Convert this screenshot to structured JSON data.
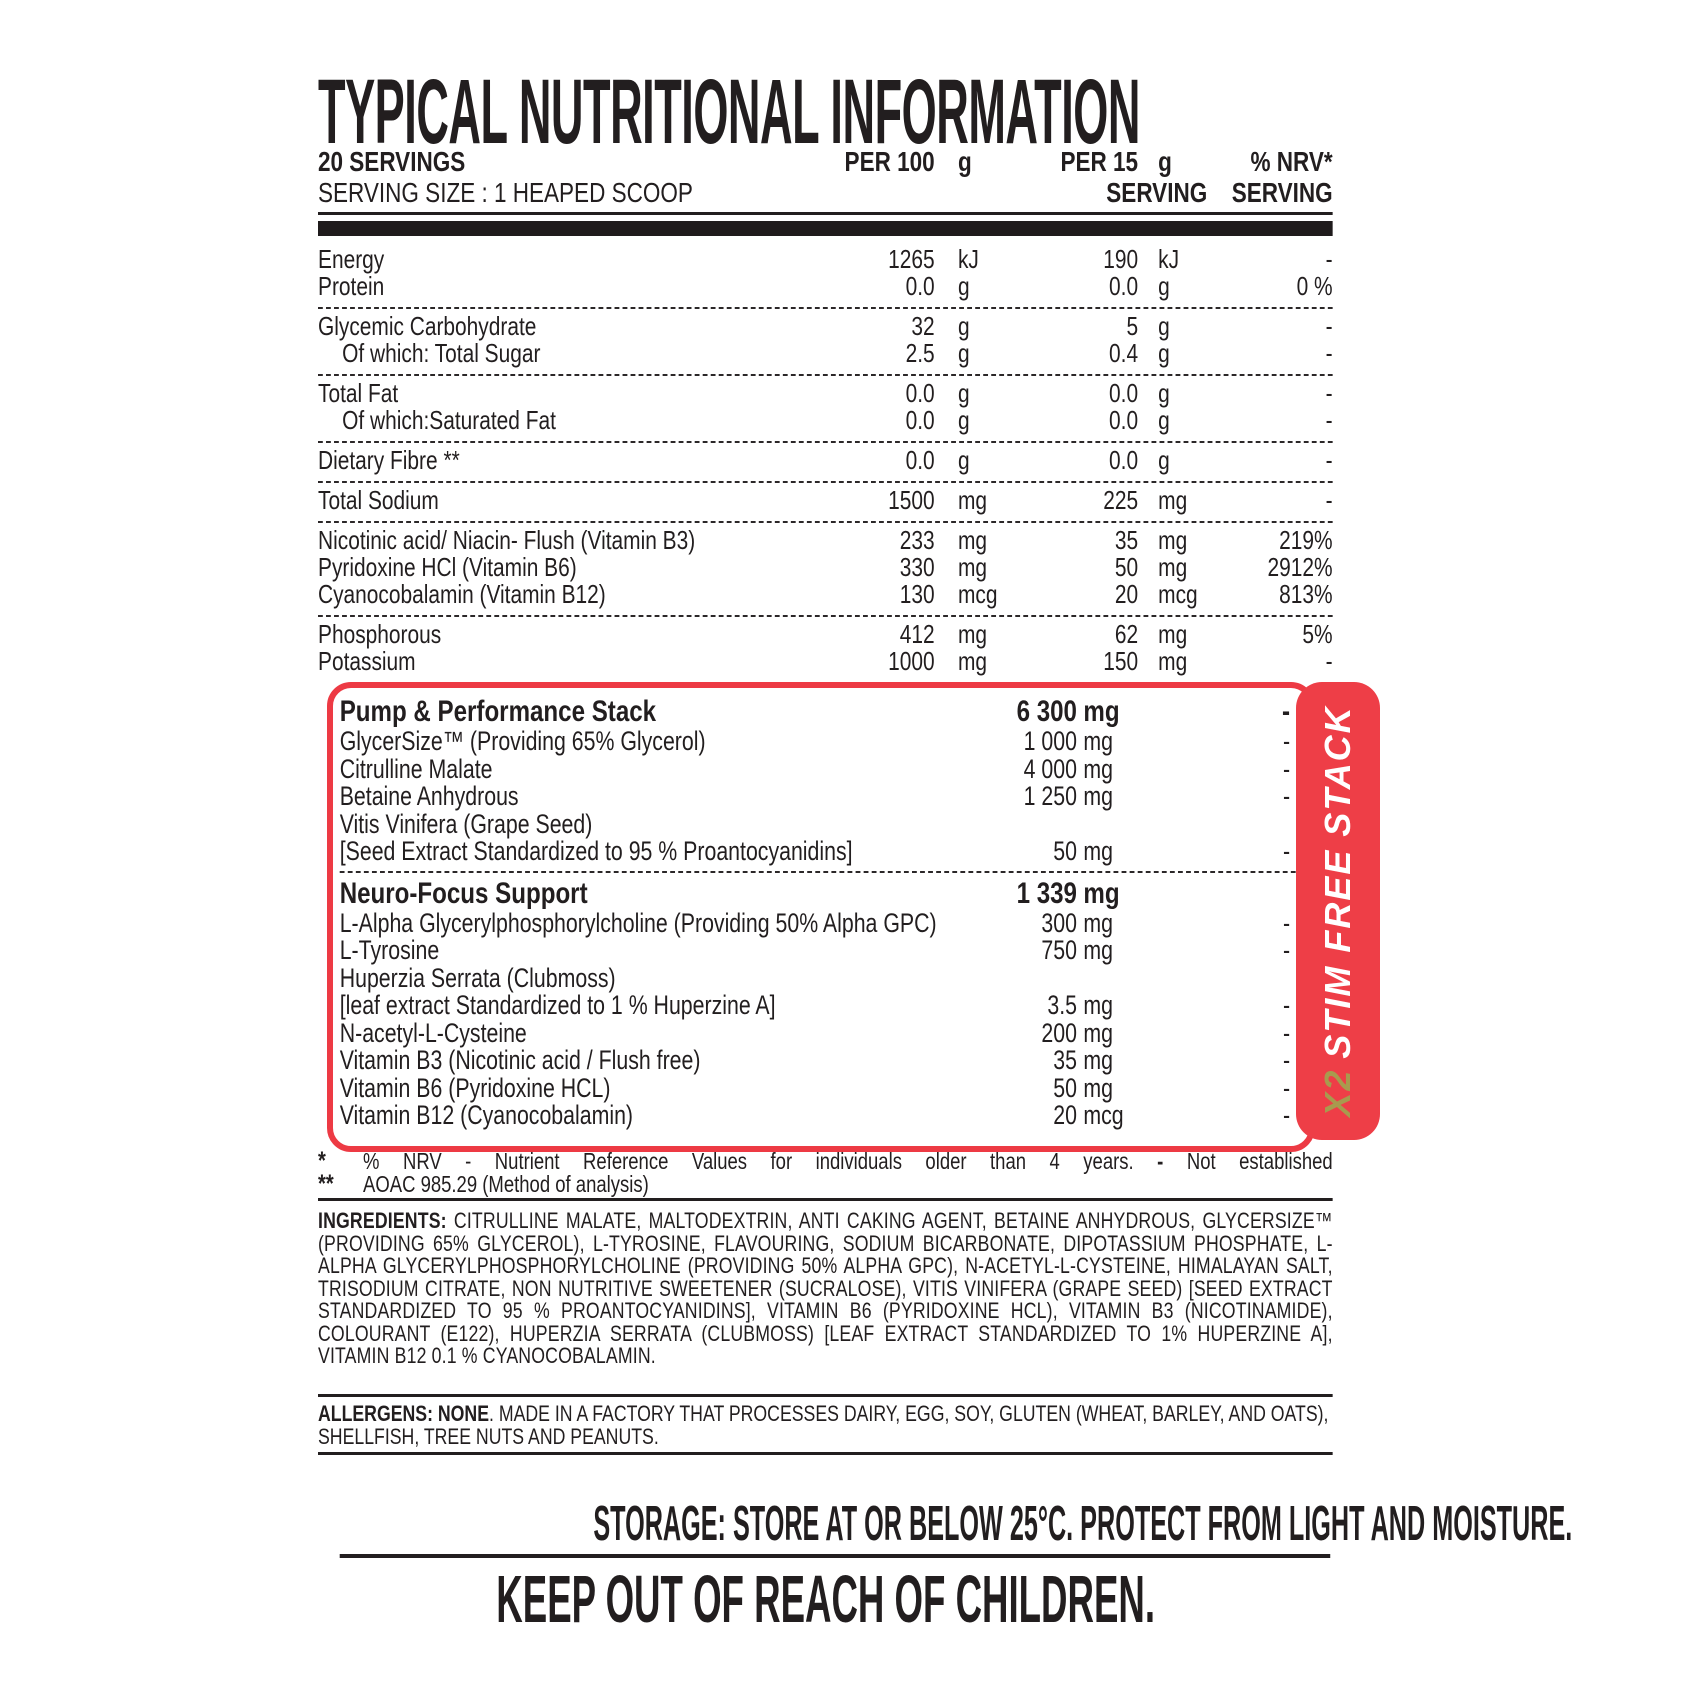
{
  "colors": {
    "red": "#ed3a44",
    "gold": "#a89a4e",
    "ink": "#221e1f"
  },
  "title": "TYPICAL NUTRITIONAL INFORMATION",
  "header": {
    "servings": "20 SERVINGS",
    "serving_size": "SERVING SIZE : 1 HEAPED SCOOP",
    "per100_label": "PER 100",
    "per100_unit": "g",
    "per15_label": "PER 15",
    "per15_unit": "g",
    "per15_sub": "SERVING",
    "nrv_label": "% NRV*",
    "nrv_sub": "SERVING"
  },
  "table": {
    "groups": [
      {
        "rows": [
          {
            "label": "Energy",
            "v1": "1265",
            "u1": "kJ",
            "v2": "190",
            "u2": "kJ",
            "nrv": "-"
          },
          {
            "label": "Protein",
            "v1": "0.0",
            "u1": "g",
            "v2": "0.0",
            "u2": "g",
            "nrv": "0 %"
          }
        ]
      },
      {
        "rows": [
          {
            "label": "Glycemic Carbohydrate",
            "v1": "32",
            "u1": "g",
            "v2": "5",
            "u2": "g",
            "nrv": "-"
          },
          {
            "label": "Of which: Total Sugar",
            "v1": "2.5",
            "u1": "g",
            "v2": "0.4",
            "u2": "g",
            "nrv": "-"
          }
        ]
      },
      {
        "rows": [
          {
            "label": "Total Fat",
            "v1": "0.0",
            "u1": "g",
            "v2": "0.0",
            "u2": "g",
            "nrv": "-"
          },
          {
            "label": "Of which:Saturated Fat",
            "v1": "0.0",
            "u1": "g",
            "v2": "0.0",
            "u2": "g",
            "nrv": "-"
          }
        ]
      },
      {
        "rows": [
          {
            "label": "Dietary Fibre **",
            "v1": "0.0",
            "u1": "g",
            "v2": "0.0",
            "u2": "g",
            "nrv": "-"
          }
        ]
      },
      {
        "rows": [
          {
            "label": "Total Sodium",
            "v1": "1500",
            "u1": "mg",
            "v2": "225",
            "u2": "mg",
            "nrv": "-"
          }
        ]
      },
      {
        "rows": [
          {
            "label": "Nicotinic acid/ Niacin- Flush (Vitamin B3)",
            "v1": "233",
            "u1": "mg",
            "v2": "35",
            "u2": "mg",
            "nrv": "219%"
          },
          {
            "label": "Pyridoxine HCl (Vitamin B6)",
            "v1": "330",
            "u1": "mg",
            "v2": "50",
            "u2": "mg",
            "nrv": "2912%"
          },
          {
            "label": "Cyanocobalamin (Vitamin B12)",
            "v1": "130",
            "u1": "mcg",
            "v2": "20",
            "u2": "mcg",
            "nrv": "813%"
          }
        ]
      },
      {
        "rows": [
          {
            "label": "Phosphorous",
            "v1": "412",
            "u1": "mg",
            "v2": "62",
            "u2": "mg",
            "nrv": "5%"
          },
          {
            "label": "Potassium",
            "v1": "1000",
            "u1": "mg",
            "v2": "150",
            "u2": "mg",
            "nrv": "-"
          }
        ]
      }
    ]
  },
  "stack": {
    "banner_x2": "X2",
    "banner_text": "STIM FREE STACK",
    "sections": [
      {
        "title": "Pump & Performance Stack",
        "value": "6 300",
        "unit": "mg",
        "nrv": "-",
        "rows": [
          {
            "label": "GlycerSize™  (Providing 65% Glycerol)",
            "v": "1 000",
            "u": "mg",
            "nrv": "-"
          },
          {
            "label": "Citrulline Malate",
            "v": "4 000",
            "u": "mg",
            "nrv": "-"
          },
          {
            "label": "Betaine Anhydrous",
            "v": "1 250",
            "u": "mg",
            "nrv": "-"
          },
          {
            "label": "Vitis Vinifera (Grape Seed)"
          },
          {
            "label": "[Seed Extract Standardized to 95 % Proantocyanidins]",
            "v": "50",
            "u": "mg",
            "nrv": "-"
          }
        ]
      },
      {
        "title": "Neuro-Focus Support",
        "value": "1 339",
        "unit": "mg",
        "rows": [
          {
            "label": "L-Alpha Glycerylphosphorylcholine (Providing 50% Alpha GPC)",
            "v": "300",
            "u": "mg",
            "nrv": "-"
          },
          {
            "label": "L-Tyrosine",
            "v": "750",
            "u": "mg",
            "nrv": "-"
          },
          {
            "label": "Huperzia Serrata (Clubmoss)"
          },
          {
            "label": "[leaf extract Standardized to 1 % Huperzine A]",
            "v": "3.5",
            "u": "mg",
            "nrv": "-"
          },
          {
            "label": "N-acetyl-L-Cysteine",
            "v": "200",
            "u": "mg",
            "nrv": "-"
          },
          {
            "label": "Vitamin B3 (Nicotinic acid / Flush free)",
            "v": "35",
            "u": "mg",
            "nrv": "-"
          },
          {
            "label": "Vitamin B6 (Pyridoxine HCL)",
            "v": "50",
            "u": "mg",
            "nrv": "-"
          },
          {
            "label": "Vitamin B12 (Cyanocobalamin)",
            "v": "20",
            "u": "mcg",
            "nrv": "-"
          }
        ]
      }
    ]
  },
  "footnotes": {
    "f1_sym": "*",
    "f1_text": "% NRV - Nutrient Reference Values for individuals older than 4 years.",
    "f1_dash": "-",
    "f1_tail": "Not established",
    "f2_sym": "**",
    "f2_text": "AOAC 985.29 (Method of analysis)"
  },
  "ingredients": {
    "label": "INGREDIENTS:",
    "text": "CITRULLINE MALATE, MALTODEXTRIN, ANTI CAKING AGENT, BETAINE ANHYDROUS, GLYCERSIZE™ (PROVIDING 65% GLYCEROL), L-TYROSINE, FLAVOURING, SODIUM BICARBONATE, DIPOTASSIUM PHOSPHATE, L-ALPHA GLYCERYLPHOSPHORYLCHOLINE (PROVIDING 50% ALPHA GPC), N-ACETYL-L-CYSTEINE, HIMALAYAN SALT, TRISODIUM CITRATE, NON NUTRITIVE SWEETENER (SUCRALOSE), VITIS VINIFERA (GRAPE SEED) [SEED EXTRACT STANDARDIZED TO 95 % PROANTOCYANIDINS], VITAMIN B6 (PYRIDOXINE HCL), VITAMIN B3 (NICOTINAMIDE), COLOURANT (E122), HUPERZIA SERRATA (CLUBMOSS) [LEAF EXTRACT STANDARDIZED TO 1% HUPERZINE A], VITAMIN B12 0.1 % CYANOCOBALAMIN."
  },
  "allergens": {
    "bold": "ALLERGENS: NONE",
    "text": ". MADE IN A FACTORY THAT PROCESSES DAIRY, EGG, SOY, GLUTEN (WHEAT, BARLEY, AND OATS), SHELLFISH, TREE NUTS AND PEANUTS."
  },
  "storage": "STORAGE: STORE AT OR BELOW 25°C. PROTECT FROM LIGHT AND MOISTURE.",
  "warning": "KEEP OUT OF REACH OF CHILDREN."
}
